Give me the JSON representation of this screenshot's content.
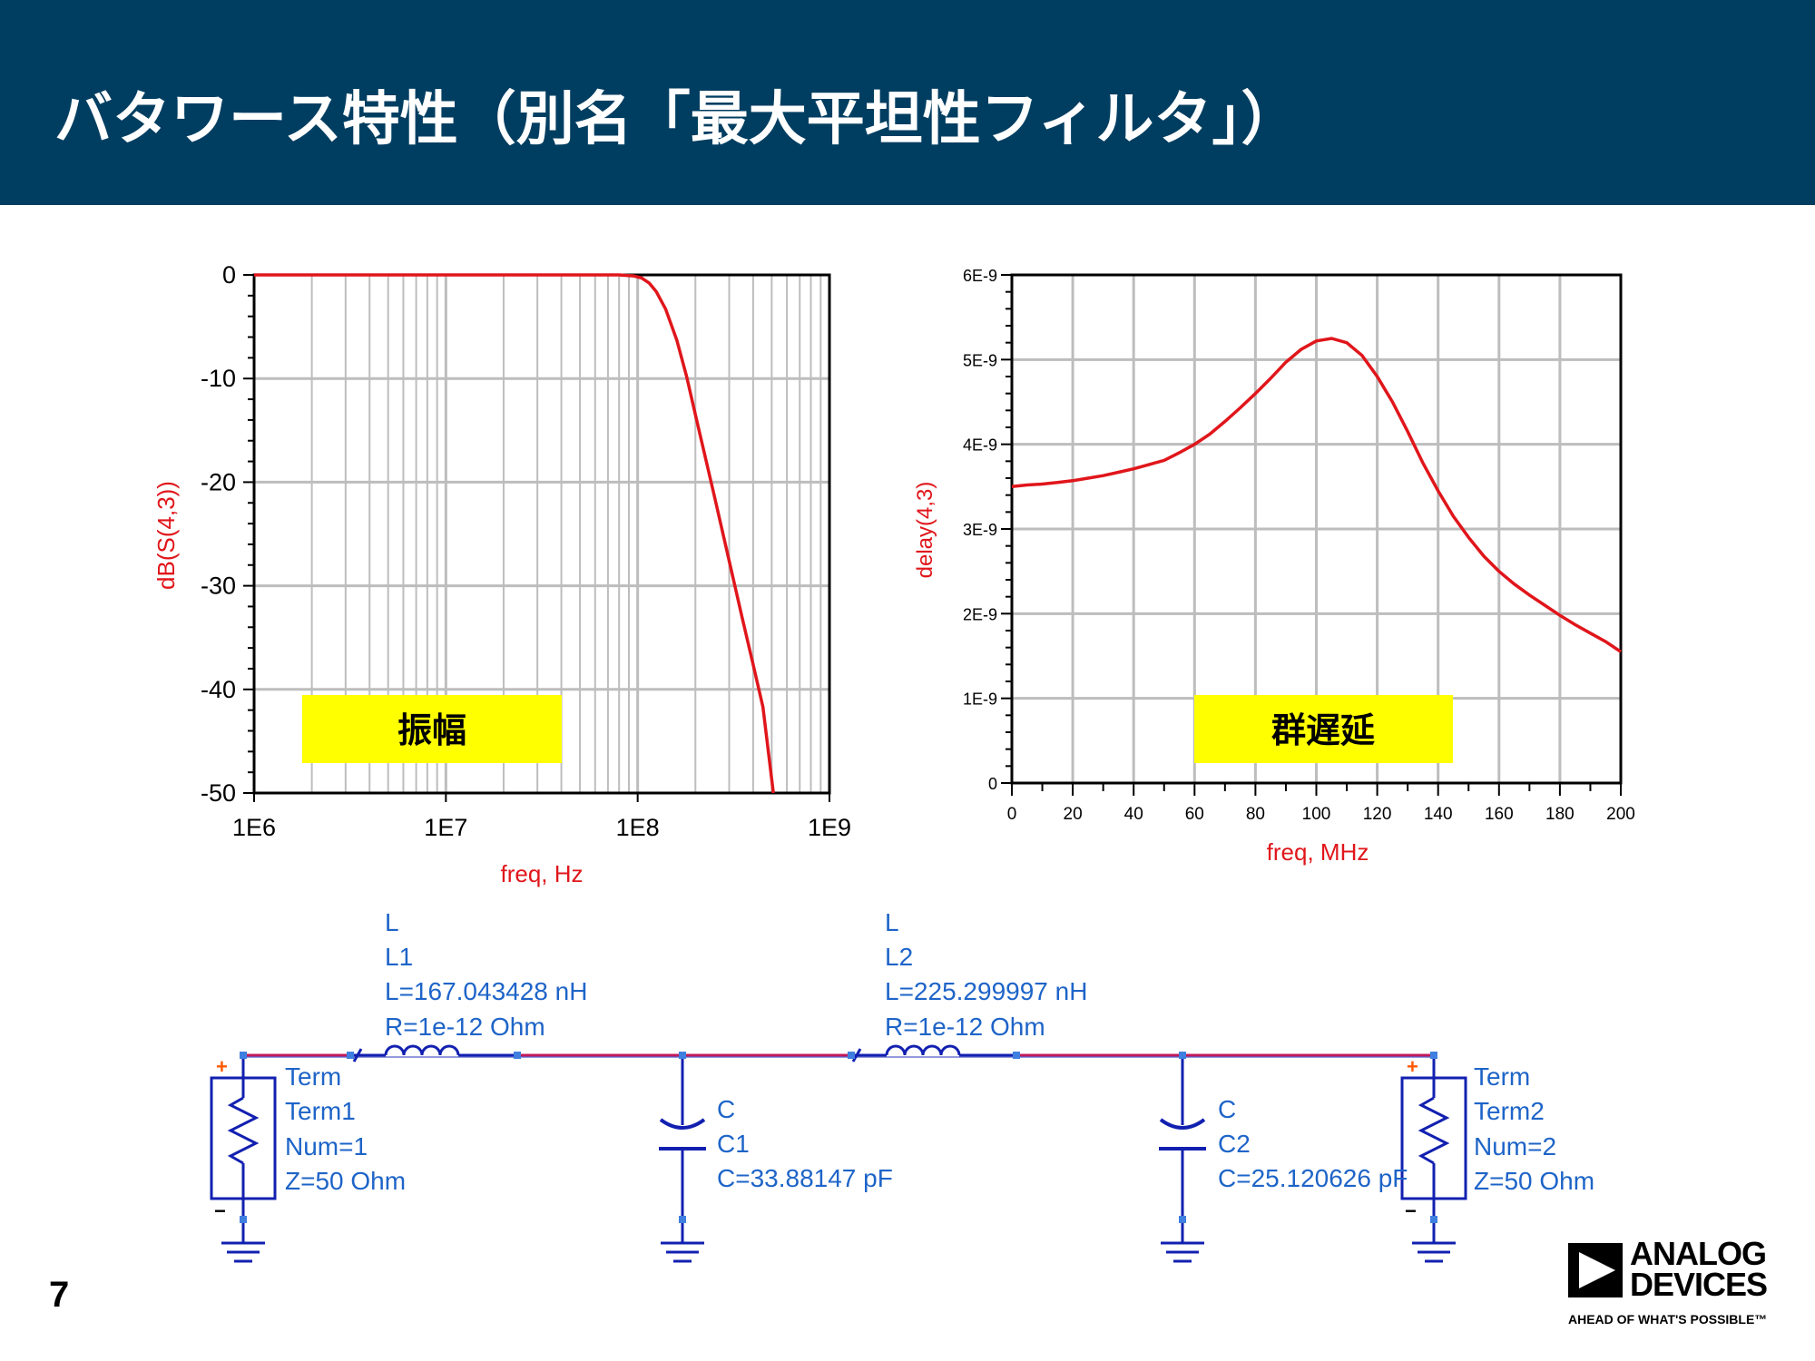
{
  "slide": {
    "title": "バタワース特性（別名「最大平坦性フィルタ」）",
    "page_number": "7",
    "header_color": "#003E61"
  },
  "logo": {
    "line1": "ANALOG",
    "line2": "DEVICES",
    "tagline": "AHEAD OF WHAT'S POSSIBLE™"
  },
  "chart_data": [
    {
      "type": "line",
      "xscale": "log",
      "xlabel": "freq, Hz",
      "ylabel": "dB(S(4,3))",
      "xlim": [
        1000000,
        1000000000
      ],
      "ylim": [
        -50,
        0
      ],
      "xticks": [
        "1E6",
        "1E7",
        "1E8",
        "1E9"
      ],
      "yticks": [
        "0",
        "-10",
        "-20",
        "-30",
        "-40",
        "-50"
      ],
      "grid": true,
      "annotation": "振幅",
      "line_color": "#E0161B",
      "series": [
        {
          "x": [
            1000000,
            10000000,
            50000000,
            80000000,
            95000000,
            105000000,
            115000000,
            125000000,
            140000000,
            160000000,
            180000000,
            200000000,
            250000000,
            300000000,
            350000000,
            400000000,
            450000000,
            510000000
          ],
          "values": [
            0,
            0,
            0,
            0,
            -0.1,
            -0.3,
            -0.8,
            -1.6,
            -3.3,
            -6.3,
            -9.8,
            -13.5,
            -21.2,
            -27.6,
            -33.0,
            -37.6,
            -41.7,
            -50.0
          ]
        }
      ]
    },
    {
      "type": "line",
      "xlabel": "freq, MHz",
      "ylabel": "delay(4,3)",
      "xlim": [
        0,
        200
      ],
      "ylim": [
        0,
        6e-09
      ],
      "xticks": [
        "0",
        "20",
        "40",
        "60",
        "80",
        "100",
        "120",
        "140",
        "160",
        "180",
        "200"
      ],
      "yticks": [
        "0",
        "1E-9",
        "2E-9",
        "3E-9",
        "4E-9",
        "5E-9",
        "6E-9"
      ],
      "grid": true,
      "annotation": "群遅延",
      "line_color": "#E0161B",
      "series": [
        {
          "x": [
            0,
            5,
            10,
            15,
            20,
            25,
            30,
            35,
            40,
            45,
            50,
            55,
            60,
            65,
            70,
            75,
            80,
            85,
            90,
            95,
            100,
            105,
            110,
            115,
            120,
            125,
            130,
            135,
            140,
            145,
            150,
            155,
            160,
            165,
            170,
            175,
            180,
            185,
            190,
            195,
            200
          ],
          "values": [
            3.5e-09,
            3.52e-09,
            3.53e-09,
            3.55e-09,
            3.57e-09,
            3.6e-09,
            3.63e-09,
            3.67e-09,
            3.71e-09,
            3.76e-09,
            3.81e-09,
            3.9e-09,
            4e-09,
            4.12e-09,
            4.27e-09,
            4.43e-09,
            4.6e-09,
            4.78e-09,
            4.97e-09,
            5.12e-09,
            5.22e-09,
            5.25e-09,
            5.2e-09,
            5.05e-09,
            4.8e-09,
            4.5e-09,
            4.15e-09,
            3.78e-09,
            3.45e-09,
            3.15e-09,
            2.9e-09,
            2.68e-09,
            2.5e-09,
            2.35e-09,
            2.22e-09,
            2.1e-09,
            1.98e-09,
            1.87e-09,
            1.77e-09,
            1.67e-09,
            1.55e-09
          ]
        }
      ]
    }
  ],
  "schematic": {
    "wire_color": "#C2185B",
    "component_color": "#1220B0",
    "label_color": "#1E64C8",
    "L1": {
      "type": "L",
      "name": "L1",
      "value": "L=167.043428 nH",
      "r": "R=1e-12 Ohm"
    },
    "L2": {
      "type": "L",
      "name": "L2",
      "value": "L=225.299997 nH",
      "r": "R=1e-12 Ohm"
    },
    "C1": {
      "type": "C",
      "name": "C1",
      "value": "C=33.88147 pF"
    },
    "C2": {
      "type": "C",
      "name": "C2",
      "value": "C=25.120626 pF"
    },
    "Term1": {
      "type": "Term",
      "name": "Term1",
      "num": "Num=1",
      "z": "Z=50 Ohm"
    },
    "Term2": {
      "type": "Term",
      "name": "Term2",
      "num": "Num=2",
      "z": "Z=50 Ohm"
    }
  }
}
